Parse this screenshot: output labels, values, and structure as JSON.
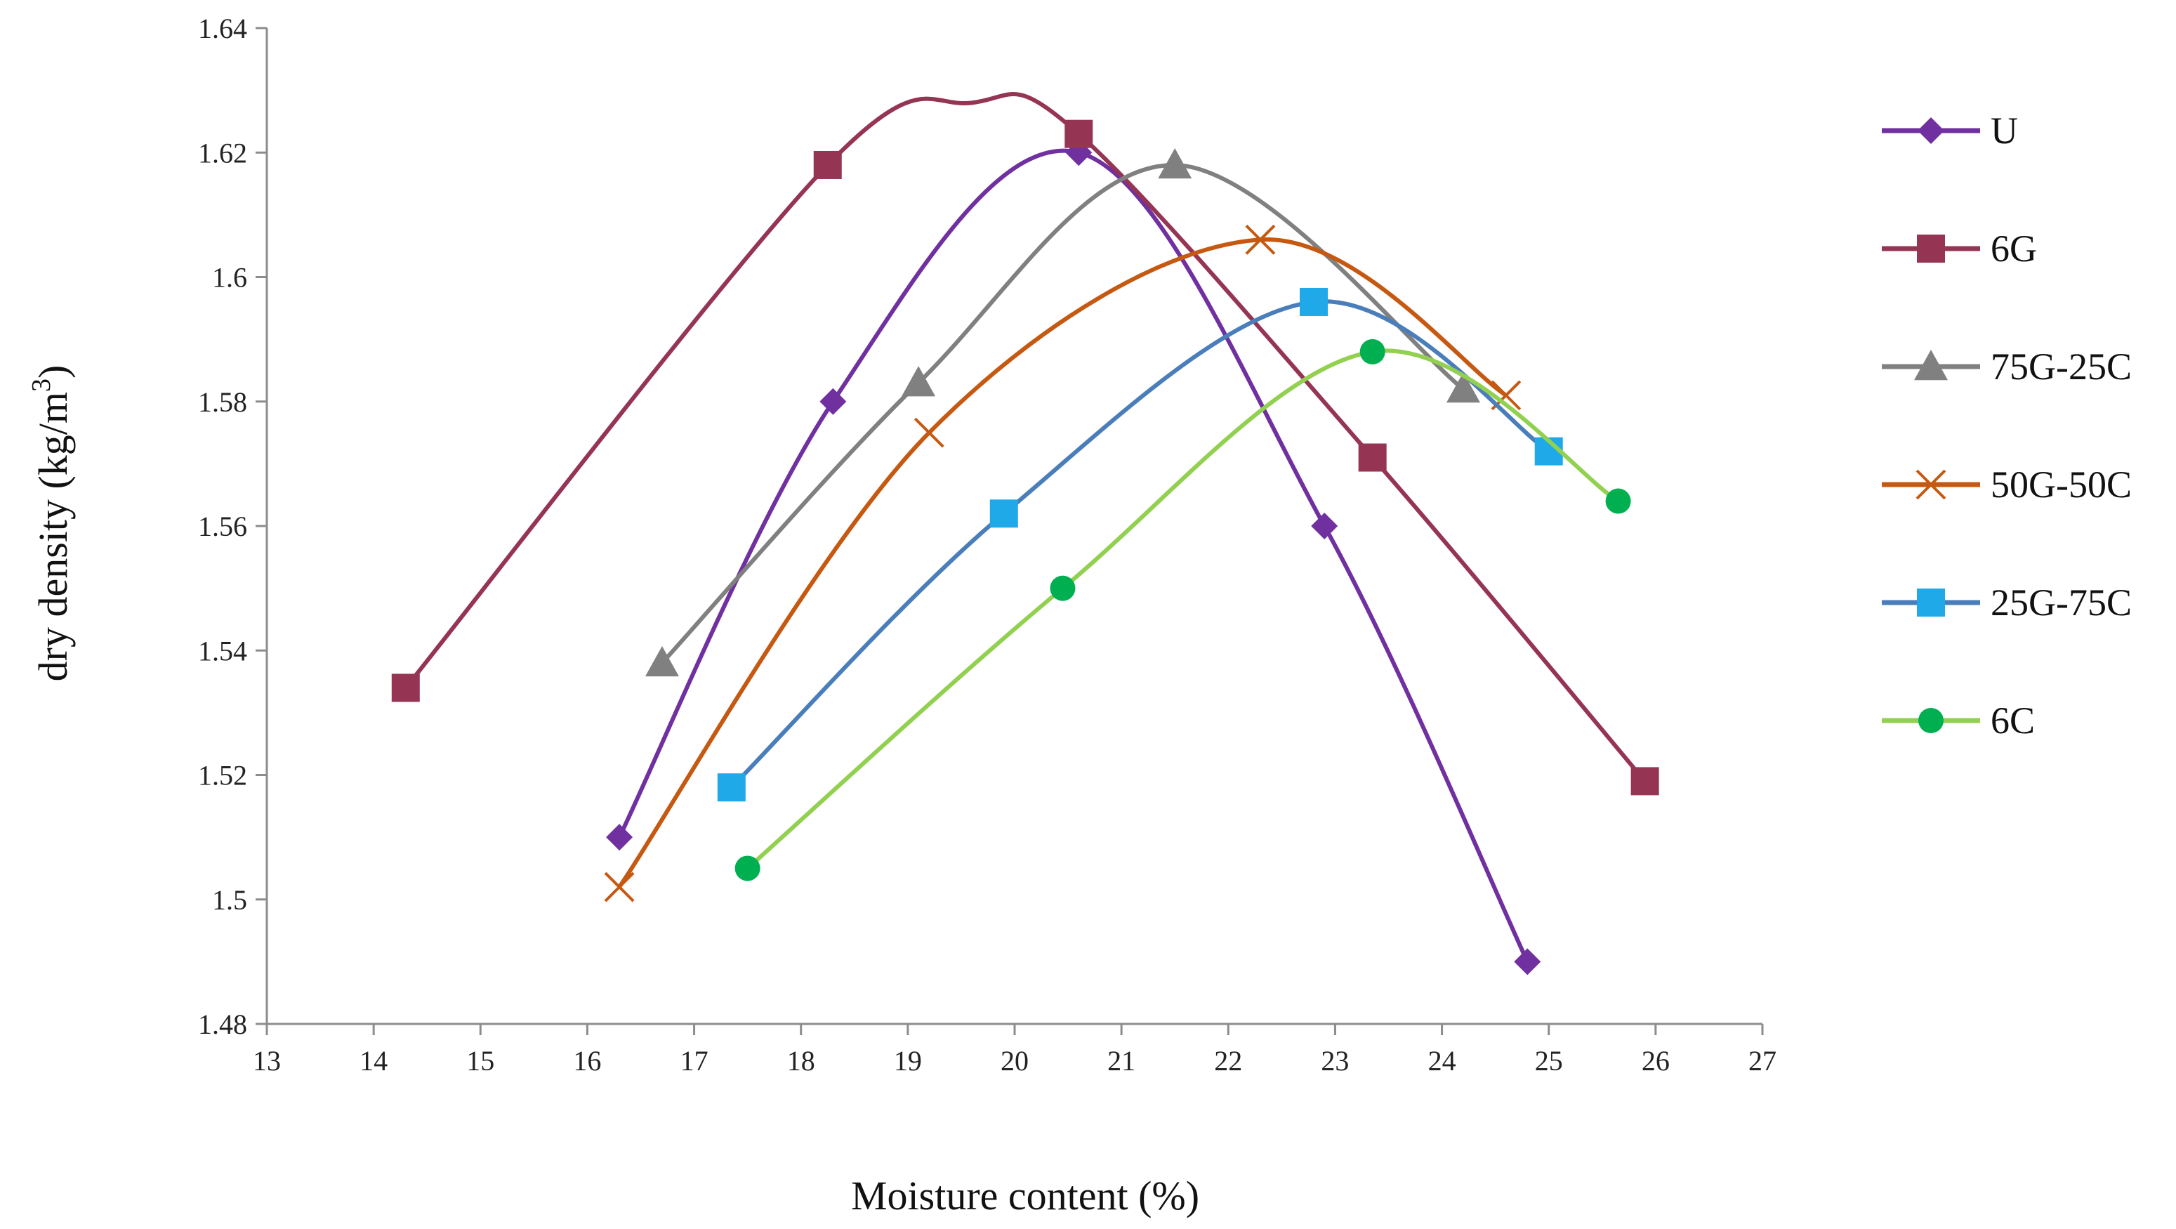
{
  "chart_data": {
    "type": "line",
    "title": "",
    "xlabel": "Moisture content (%)",
    "ylabel": "dry density (kg/m",
    "ylabel_superscript": "3",
    "ylabel_suffix": ")",
    "xlim": [
      13,
      27
    ],
    "ylim": [
      1.48,
      1.64
    ],
    "xticks": [
      13,
      14,
      15,
      16,
      17,
      18,
      19,
      20,
      21,
      22,
      23,
      24,
      25,
      26,
      27
    ],
    "xtick_labels": [
      "13",
      "14",
      "15",
      "16",
      "17",
      "18",
      "19",
      "20",
      "21",
      "22",
      "23",
      "24",
      "25",
      "26",
      "27"
    ],
    "yticks": [
      1.48,
      1.5,
      1.52,
      1.54,
      1.56,
      1.58,
      1.6,
      1.62,
      1.64
    ],
    "ytick_labels": [
      "1.48",
      "1.5",
      "1.52",
      "1.54",
      "1.56",
      "1.58",
      "1.6",
      "1.62",
      "1.64"
    ],
    "grid": false,
    "legend_position": "right",
    "series": [
      {
        "name": "U",
        "color": "#7030A0",
        "marker": "diamond",
        "x": [
          16.3,
          18.3,
          20.6,
          22.9,
          24.8
        ],
        "y": [
          1.51,
          1.58,
          1.62,
          1.56,
          1.49
        ],
        "curve_peak": [
          20.5,
          1.621
        ]
      },
      {
        "name": "6G",
        "color": "#953553",
        "marker": "square",
        "x": [
          14.3,
          18.25,
          20.6,
          23.35,
          25.9
        ],
        "y": [
          1.534,
          1.618,
          1.623,
          1.571,
          1.519
        ],
        "curve_peak": [
          19.6,
          1.628
        ]
      },
      {
        "name": "75G-25C",
        "color": "#808080",
        "marker": "triangle",
        "x": [
          16.7,
          19.1,
          21.5,
          24.2
        ],
        "y": [
          1.538,
          1.583,
          1.618,
          1.582
        ],
        "curve_peak": [
          21.5,
          1.618
        ]
      },
      {
        "name": "50G-50C",
        "color": "#C65911",
        "marker": "x",
        "x": [
          16.3,
          19.2,
          22.3,
          24.6
        ],
        "y": [
          1.502,
          1.575,
          1.606,
          1.581
        ],
        "curve_peak": [
          22.4,
          1.607
        ]
      },
      {
        "name": "25G-75C",
        "color": "#4A7EBB",
        "marker_color": "#1FA9E8",
        "marker": "square",
        "x": [
          17.35,
          19.9,
          22.8,
          25.0
        ],
        "y": [
          1.518,
          1.562,
          1.596,
          1.572
        ],
        "curve_peak": [
          22.9,
          1.597
        ]
      },
      {
        "name": "6C",
        "color": "#92D050",
        "marker_color": "#00B050",
        "marker": "circle",
        "x": [
          17.5,
          20.45,
          23.35,
          25.65
        ],
        "y": [
          1.505,
          1.55,
          1.588,
          1.564
        ],
        "curve_peak": [
          23.5,
          1.588
        ]
      }
    ]
  }
}
